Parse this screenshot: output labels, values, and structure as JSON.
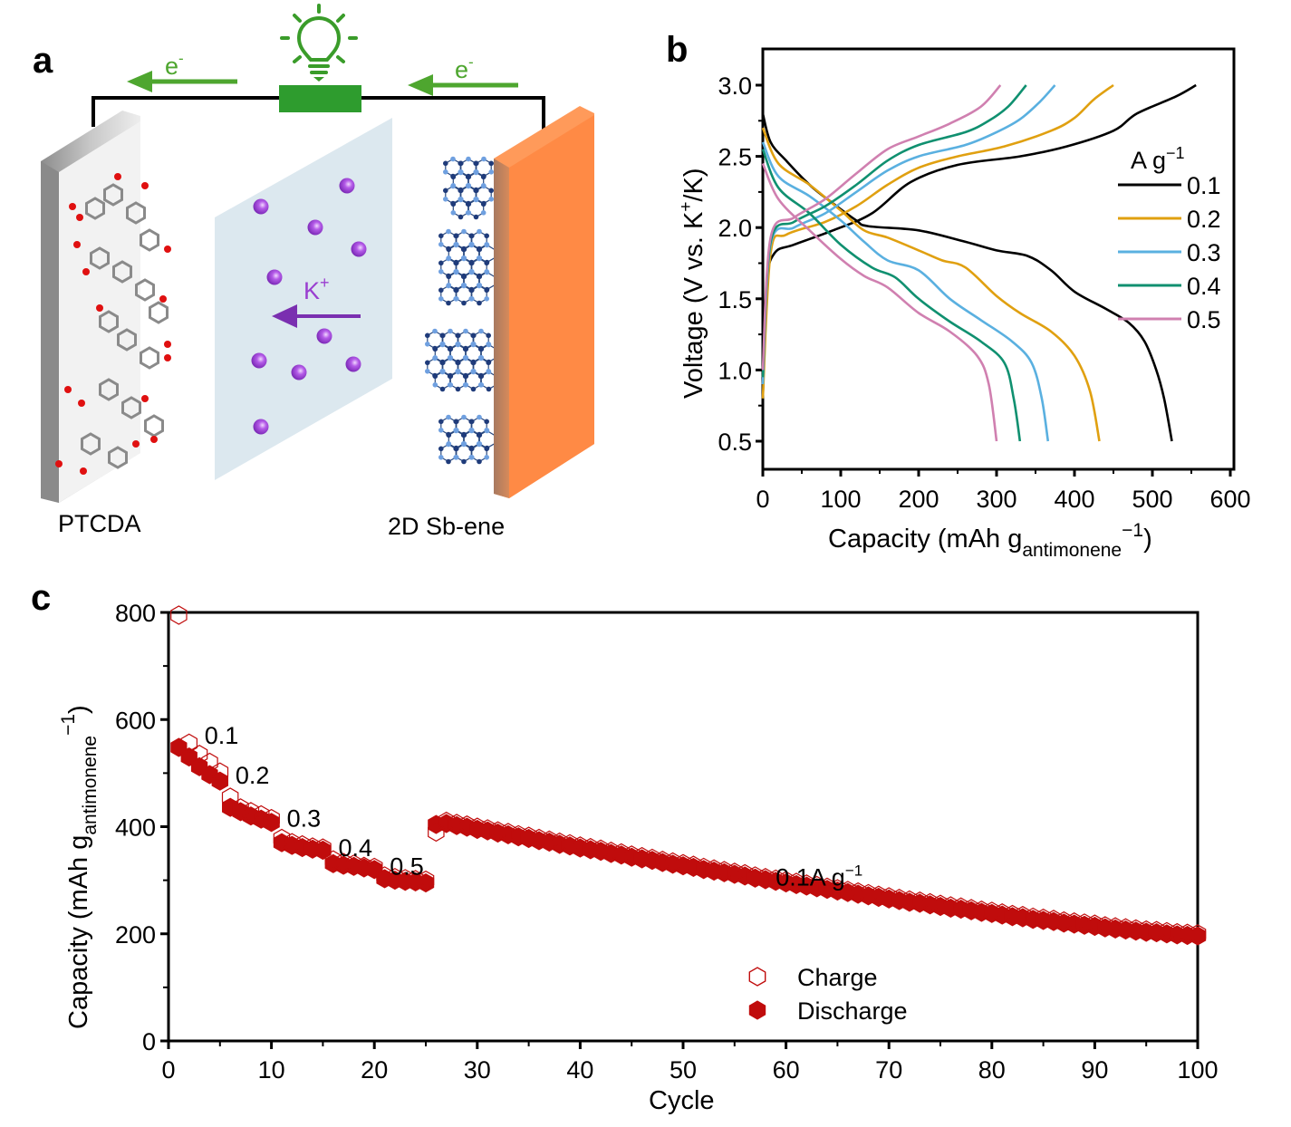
{
  "panels": {
    "a": {
      "letter": "a",
      "electron_label": "e",
      "electron_sup": "-",
      "ion_label": "K",
      "ion_sup": "+",
      "left_electrode_label": "PTCDA",
      "right_electrode_label": "2D Sb-ene",
      "colors": {
        "circuit_green": "#2e9c2e",
        "arrow_green": "#4ea62f",
        "ion_purple": "#9a3fd0",
        "ion_arrow": "#7a2fb0",
        "separator": "#dce8ef",
        "right_electrode": "#ff8a45",
        "left_electrode": "#cfcfcf",
        "oxygen": "#e01010",
        "carbon": "#8a8a8a",
        "sb_dark": "#1f3b7a",
        "sb_light": "#6fa0e0"
      },
      "icons": [
        "light-bulb-icon",
        "electron-arrow-icon",
        "ion-arrow-icon"
      ]
    },
    "b": {
      "letter": "b"
    },
    "c": {
      "letter": "c"
    }
  },
  "chart_data": [
    {
      "id": "b",
      "type": "line",
      "title": "",
      "xlabel": "Capacity (mAh g",
      "xlabel_sub": "antimonene",
      "xlabel_sup": "−1",
      "xlabel_end": ")",
      "ylabel": "Voltage (V vs. K",
      "ylabel_sup": "+",
      "ylabel_end": "/K)",
      "xlim": [
        0,
        600
      ],
      "ylim": [
        0.25,
        3.25
      ],
      "xticks": [
        0,
        100,
        200,
        300,
        400,
        500,
        600
      ],
      "yticks": [
        0.5,
        1.0,
        1.5,
        2.0,
        2.5,
        3.0
      ],
      "ytick_labels": [
        "0.5",
        "1.0",
        "1.5",
        "2.0",
        "2.5",
        "3.0"
      ],
      "legend_title": "A g",
      "legend_title_sup": "−1",
      "legend_position": "right",
      "grid": false,
      "series": [
        {
          "name": "0.1",
          "color": "#000000",
          "discharge": [
            [
              0,
              2.8
            ],
            [
              10,
              2.6
            ],
            [
              30,
              2.47
            ],
            [
              60,
              2.3
            ],
            [
              90,
              2.17
            ],
            [
              120,
              2.05
            ],
            [
              135,
              2.01
            ],
            [
              200,
              1.98
            ],
            [
              260,
              1.9
            ],
            [
              300,
              1.84
            ],
            [
              340,
              1.8
            ],
            [
              370,
              1.7
            ],
            [
              400,
              1.55
            ],
            [
              440,
              1.43
            ],
            [
              470,
              1.33
            ],
            [
              490,
              1.2
            ],
            [
              505,
              1.0
            ],
            [
              515,
              0.8
            ],
            [
              525,
              0.5
            ]
          ],
          "charge": [
            [
              0,
              0.8
            ],
            [
              5,
              1.6
            ],
            [
              15,
              1.82
            ],
            [
              40,
              1.88
            ],
            [
              90,
              1.98
            ],
            [
              140,
              2.1
            ],
            [
              190,
              2.32
            ],
            [
              250,
              2.44
            ],
            [
              330,
              2.5
            ],
            [
              390,
              2.57
            ],
            [
              450,
              2.68
            ],
            [
              480,
              2.8
            ],
            [
              530,
              2.92
            ],
            [
              556,
              3.0
            ]
          ]
        },
        {
          "name": "0.2",
          "color": "#e0a010",
          "discharge": [
            [
              0,
              2.7
            ],
            [
              20,
              2.45
            ],
            [
              60,
              2.3
            ],
            [
              100,
              2.12
            ],
            [
              130,
              1.98
            ],
            [
              160,
              1.93
            ],
            [
              200,
              1.84
            ],
            [
              230,
              1.77
            ],
            [
              260,
              1.72
            ],
            [
              300,
              1.52
            ],
            [
              330,
              1.4
            ],
            [
              370,
              1.27
            ],
            [
              400,
              1.1
            ],
            [
              420,
              0.85
            ],
            [
              432,
              0.5
            ]
          ],
          "charge": [
            [
              0,
              0.8
            ],
            [
              10,
              1.82
            ],
            [
              30,
              1.95
            ],
            [
              80,
              2.04
            ],
            [
              120,
              2.15
            ],
            [
              160,
              2.3
            ],
            [
              200,
              2.42
            ],
            [
              250,
              2.5
            ],
            [
              310,
              2.57
            ],
            [
              370,
              2.68
            ],
            [
              400,
              2.77
            ],
            [
              425,
              2.9
            ],
            [
              450,
              3.0
            ]
          ]
        },
        {
          "name": "0.3",
          "color": "#5ab0e0",
          "discharge": [
            [
              0,
              2.6
            ],
            [
              20,
              2.36
            ],
            [
              60,
              2.22
            ],
            [
              100,
              2.05
            ],
            [
              130,
              1.9
            ],
            [
              160,
              1.77
            ],
            [
              200,
              1.7
            ],
            [
              240,
              1.5
            ],
            [
              280,
              1.35
            ],
            [
              320,
              1.2
            ],
            [
              345,
              1.05
            ],
            [
              358,
              0.8
            ],
            [
              366,
              0.5
            ]
          ],
          "charge": [
            [
              0,
              0.9
            ],
            [
              10,
              1.88
            ],
            [
              40,
              2.0
            ],
            [
              80,
              2.1
            ],
            [
              120,
              2.25
            ],
            [
              160,
              2.4
            ],
            [
              200,
              2.5
            ],
            [
              260,
              2.58
            ],
            [
              300,
              2.67
            ],
            [
              330,
              2.76
            ],
            [
              355,
              2.88
            ],
            [
              375,
              3.0
            ]
          ]
        },
        {
          "name": "0.4",
          "color": "#109070",
          "discharge": [
            [
              0,
              2.55
            ],
            [
              20,
              2.28
            ],
            [
              60,
              2.1
            ],
            [
              100,
              1.88
            ],
            [
              140,
              1.72
            ],
            [
              170,
              1.65
            ],
            [
              200,
              1.5
            ],
            [
              240,
              1.34
            ],
            [
              280,
              1.2
            ],
            [
              310,
              1.05
            ],
            [
              322,
              0.8
            ],
            [
              330,
              0.5
            ]
          ],
          "charge": [
            [
              0,
              0.95
            ],
            [
              10,
              1.9
            ],
            [
              40,
              2.04
            ],
            [
              80,
              2.15
            ],
            [
              120,
              2.3
            ],
            [
              160,
              2.47
            ],
            [
              200,
              2.58
            ],
            [
              260,
              2.67
            ],
            [
              290,
              2.75
            ],
            [
              315,
              2.85
            ],
            [
              338,
              3.0
            ]
          ]
        },
        {
          "name": "0.5",
          "color": "#d080b0",
          "discharge": [
            [
              0,
              2.45
            ],
            [
              20,
              2.2
            ],
            [
              60,
              1.98
            ],
            [
              100,
              1.78
            ],
            [
              130,
              1.66
            ],
            [
              160,
              1.58
            ],
            [
              200,
              1.4
            ],
            [
              240,
              1.27
            ],
            [
              275,
              1.1
            ],
            [
              290,
              0.9
            ],
            [
              300,
              0.5
            ]
          ],
          "charge": [
            [
              0,
              1.0
            ],
            [
              10,
              1.93
            ],
            [
              40,
              2.07
            ],
            [
              80,
              2.2
            ],
            [
              120,
              2.38
            ],
            [
              160,
              2.55
            ],
            [
              200,
              2.64
            ],
            [
              240,
              2.73
            ],
            [
              280,
              2.85
            ],
            [
              305,
              3.0
            ]
          ]
        }
      ]
    },
    {
      "id": "c",
      "type": "scatter",
      "title": "",
      "xlabel": "Cycle",
      "ylabel": "Capacity (mAh g",
      "ylabel_sub": "antimonene",
      "ylabel_sup": "−1",
      "ylabel_end": ")",
      "xlim": [
        0,
        100
      ],
      "ylim": [
        0,
        800
      ],
      "xticks": [
        0,
        10,
        20,
        30,
        40,
        50,
        60,
        70,
        80,
        90,
        100
      ],
      "yticks": [
        0,
        200,
        400,
        600,
        800
      ],
      "grid": false,
      "legend_position": "bottom-center",
      "marker_color": "#c00c0c",
      "annotations": [
        {
          "text": "0.1",
          "x": 3.5,
          "y": 555
        },
        {
          "text": "0.2",
          "x": 6.5,
          "y": 480
        },
        {
          "text": "0.3",
          "x": 11.5,
          "y": 400
        },
        {
          "text": "0.4",
          "x": 16.5,
          "y": 345
        },
        {
          "text": "0.5",
          "x": 21.5,
          "y": 310
        },
        {
          "text": "0.1A g",
          "sup": "−1",
          "x": 59,
          "y": 290
        }
      ],
      "rate_segments": [
        {
          "rate": "0.1",
          "cycles": [
            1,
            5
          ]
        },
        {
          "rate": "0.2",
          "cycles": [
            6,
            10
          ]
        },
        {
          "rate": "0.3",
          "cycles": [
            11,
            15
          ]
        },
        {
          "rate": "0.4",
          "cycles": [
            16,
            20
          ]
        },
        {
          "rate": "0.5",
          "cycles": [
            21,
            25
          ]
        },
        {
          "rate": "0.1",
          "cycles": [
            26,
            100
          ]
        }
      ],
      "series": [
        {
          "name": "Charge",
          "marker": "hexagon-open",
          "x": [
            1,
            2,
            3,
            4,
            5,
            6,
            7,
            8,
            9,
            10,
            11,
            12,
            13,
            14,
            15,
            16,
            17,
            18,
            19,
            20,
            21,
            22,
            23,
            24,
            25,
            26
          ],
          "y": [
            795,
            556,
            535,
            520,
            502,
            455,
            435,
            428,
            422,
            415,
            378,
            370,
            366,
            362,
            360,
            338,
            333,
            330,
            326,
            324,
            308,
            305,
            303,
            301,
            300,
            390
          ],
          "tail_start": 27,
          "tail_end": 100,
          "tail_from": 410,
          "tail_to": 200
        },
        {
          "name": "Discharge",
          "marker": "hexagon-filled",
          "x": [
            1,
            2,
            3,
            4,
            5,
            6,
            7,
            8,
            9,
            10,
            11,
            12,
            13,
            14,
            15,
            16,
            17,
            18,
            19,
            20,
            21,
            22,
            23,
            24,
            25,
            26
          ],
          "y": [
            548,
            530,
            512,
            497,
            485,
            436,
            428,
            420,
            414,
            408,
            370,
            365,
            361,
            358,
            356,
            331,
            328,
            326,
            323,
            320,
            303,
            300,
            298,
            297,
            295,
            404
          ],
          "tail_start": 27,
          "tail_end": 100,
          "tail_from": 406,
          "tail_to": 196
        }
      ]
    }
  ]
}
